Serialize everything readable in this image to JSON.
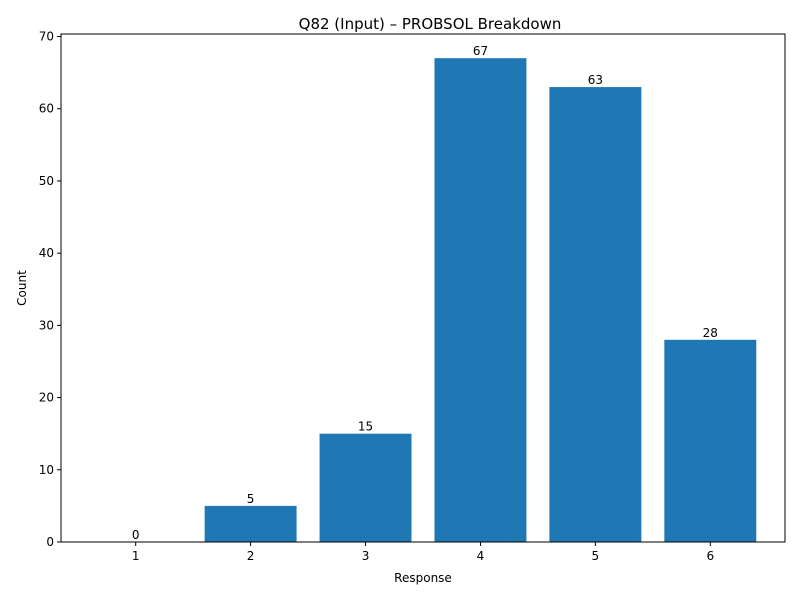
{
  "chart_data": {
    "type": "bar",
    "title": "Q82 (Input) – PROBSOL Breakdown",
    "xlabel": "Response",
    "ylabel": "Count",
    "categories": [
      "1",
      "2",
      "3",
      "4",
      "5",
      "6"
    ],
    "values": [
      0,
      5,
      15,
      67,
      63,
      28
    ],
    "data_labels": [
      "0",
      "5",
      "15",
      "67",
      "63",
      "28"
    ],
    "ylim": [
      0,
      70.35
    ],
    "yticks": [
      0,
      10,
      20,
      30,
      40,
      50,
      60,
      70
    ],
    "bar_color": "#1f77b4",
    "grid": false,
    "legend": "none"
  }
}
